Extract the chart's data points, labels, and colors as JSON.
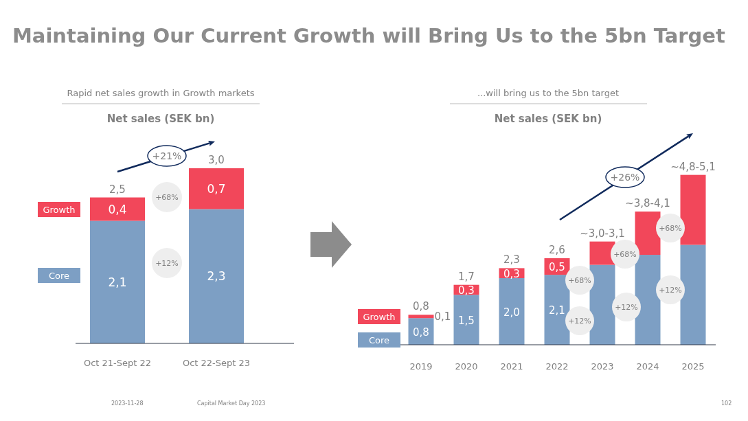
{
  "chart_data": [
    {
      "type": "bar",
      "stacked": true,
      "title": "Net sales (SEK bn)",
      "subtitle": "Rapid net sales growth in Growth markets",
      "categories": [
        "Oct 21-Sept 22",
        "Oct 22-Sept 23"
      ],
      "series": [
        {
          "name": "Core",
          "color": "#7d9fc4",
          "values": [
            2.1,
            2.3
          ],
          "value_labels": [
            "2,1",
            "2,3"
          ]
        },
        {
          "name": "Growth",
          "color": "#f2475a",
          "values": [
            0.4,
            0.7
          ],
          "value_labels": [
            "0,4",
            "0,7"
          ]
        }
      ],
      "totals": [
        "2,5",
        "3,0"
      ],
      "legend": "left",
      "annotations": [
        "Maintaining Our Current Growth will Bring Us to the 5bn Target",
        "+21%",
        "+68%",
        "+12%",
        "2023-11-28",
        "Capital Market Day 2023",
        "102"
      ]
    },
    {
      "type": "bar",
      "stacked": true,
      "title": "Net sales (SEK bn)",
      "subtitle": "...will bring us to the 5bn target",
      "categories": [
        "2019",
        "2020",
        "2021",
        "2022",
        "2023",
        "2024",
        "2025"
      ],
      "series": [
        {
          "name": "Core",
          "color": "#7d9fc4",
          "values": [
            0.8,
            1.5,
            2.0,
            2.1,
            2.4,
            2.7,
            3.0
          ],
          "value_labels": [
            "0,8",
            "1,5",
            "2,0",
            "2,1",
            null,
            null,
            null
          ]
        },
        {
          "name": "Growth",
          "color": "#f2475a",
          "values": [
            0.1,
            0.3,
            0.3,
            0.5,
            0.7,
            1.3,
            2.1
          ],
          "value_labels": [
            "0,1",
            "0,3",
            "0,3",
            "0,5",
            null,
            null,
            null
          ]
        }
      ],
      "totals": [
        "0,8",
        "1,7",
        "2,3",
        "2,6",
        "~3,0-3,1",
        "~3,8-4,1",
        "~4,8-5,1"
      ],
      "legend": "bottom left",
      "annotations": [
        "+26%",
        "+68%",
        "+68%",
        "+68%",
        "+12%",
        "+12%",
        "+12%"
      ]
    }
  ]
}
